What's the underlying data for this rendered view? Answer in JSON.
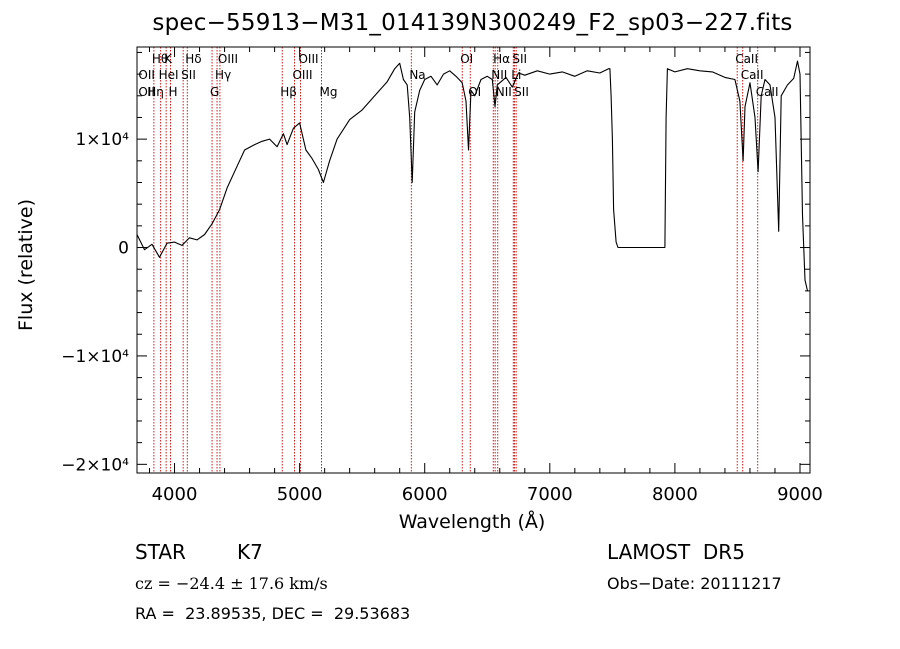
{
  "title": "spec−55913−M31_014139N300249_F2_sp03−227.fits",
  "chart_data": {
    "type": "line",
    "xlabel": "Wavelength (Å)",
    "ylabel": "Flux (relative)",
    "xlim": [
      3700,
      9080
    ],
    "ylim": [
      -20800,
      18500
    ],
    "x_ticks": [
      {
        "value": 4000,
        "label": "4000"
      },
      {
        "value": 5000,
        "label": "5000"
      },
      {
        "value": 6000,
        "label": "6000"
      },
      {
        "value": 7000,
        "label": "7000"
      },
      {
        "value": 8000,
        "label": "8000"
      },
      {
        "value": 9000,
        "label": "9000"
      }
    ],
    "y_ticks": [
      {
        "value": 10000,
        "label": "1×10⁴"
      },
      {
        "value": 0,
        "label": "0"
      },
      {
        "value": -10000,
        "label": "−1×10⁴"
      },
      {
        "value": -20000,
        "label": "−2×10⁴"
      }
    ],
    "series": [
      {
        "color": "#000000",
        "points": [
          [
            3700,
            1200
          ],
          [
            3760,
            -200
          ],
          [
            3820,
            300
          ],
          [
            3880,
            -900
          ],
          [
            3940,
            400
          ],
          [
            4000,
            500
          ],
          [
            4060,
            200
          ],
          [
            4120,
            900
          ],
          [
            4180,
            700
          ],
          [
            4240,
            1200
          ],
          [
            4300,
            2200
          ],
          [
            4360,
            3500
          ],
          [
            4420,
            5500
          ],
          [
            4500,
            7500
          ],
          [
            4560,
            9000
          ],
          [
            4640,
            9500
          ],
          [
            4700,
            9800
          ],
          [
            4760,
            10000
          ],
          [
            4820,
            9300
          ],
          [
            4870,
            10500
          ],
          [
            4900,
            9500
          ],
          [
            4950,
            11000
          ],
          [
            5000,
            11500
          ],
          [
            5050,
            9000
          ],
          [
            5100,
            8200
          ],
          [
            5150,
            7200
          ],
          [
            5190,
            6000
          ],
          [
            5240,
            8000
          ],
          [
            5300,
            10000
          ],
          [
            5400,
            11800
          ],
          [
            5500,
            12700
          ],
          [
            5600,
            14000
          ],
          [
            5700,
            15300
          ],
          [
            5760,
            16500
          ],
          [
            5800,
            17000
          ],
          [
            5830,
            15500
          ],
          [
            5860,
            15000
          ],
          [
            5880,
            12000
          ],
          [
            5900,
            6000
          ],
          [
            5920,
            12500
          ],
          [
            5960,
            14500
          ],
          [
            6000,
            15500
          ],
          [
            6050,
            15800
          ],
          [
            6100,
            15000
          ],
          [
            6150,
            16000
          ],
          [
            6200,
            16300
          ],
          [
            6250,
            15800
          ],
          [
            6300,
            15200
          ],
          [
            6330,
            13500
          ],
          [
            6350,
            9000
          ],
          [
            6370,
            14500
          ],
          [
            6400,
            14000
          ],
          [
            6450,
            15500
          ],
          [
            6500,
            15800
          ],
          [
            6540,
            15500
          ],
          [
            6562,
            13000
          ],
          [
            6580,
            15000
          ],
          [
            6650,
            15700
          ],
          [
            6700,
            14800
          ],
          [
            6750,
            16100
          ],
          [
            6800,
            15900
          ],
          [
            6900,
            16300
          ],
          [
            7000,
            16000
          ],
          [
            7100,
            16200
          ],
          [
            7200,
            15800
          ],
          [
            7300,
            16300
          ],
          [
            7400,
            16100
          ],
          [
            7470,
            16500
          ],
          [
            7480,
            16500
          ],
          [
            7490,
            14000
          ],
          [
            7500,
            10000
          ],
          [
            7510,
            3500
          ],
          [
            7530,
            500
          ],
          [
            7545,
            0
          ],
          [
            7920,
            0
          ],
          [
            7930,
            12000
          ],
          [
            7940,
            16500
          ],
          [
            8000,
            16200
          ],
          [
            8100,
            16500
          ],
          [
            8200,
            16300
          ],
          [
            8300,
            16200
          ],
          [
            8400,
            15700
          ],
          [
            8480,
            15500
          ],
          [
            8520,
            13500
          ],
          [
            8545,
            8000
          ],
          [
            8560,
            13000
          ],
          [
            8600,
            15200
          ],
          [
            8640,
            12000
          ],
          [
            8665,
            7000
          ],
          [
            8690,
            14000
          ],
          [
            8720,
            15500
          ],
          [
            8760,
            15000
          ],
          [
            8800,
            12000
          ],
          [
            8830,
            1500
          ],
          [
            8850,
            14000
          ],
          [
            8900,
            15000
          ],
          [
            8950,
            15600
          ],
          [
            8980,
            17200
          ],
          [
            9000,
            16000
          ],
          [
            9020,
            3000
          ],
          [
            9040,
            -3000
          ],
          [
            9060,
            -4000
          ]
        ]
      }
    ],
    "line_markers": [
      {
        "x": 3835,
        "label": "Hθ",
        "row": 1
      },
      {
        "x": 3889,
        "label": "HeI",
        "row": 2
      },
      {
        "x": 3933,
        "label": "K",
        "row": 1
      },
      {
        "x": 3968,
        "label": "H",
        "row": 3
      },
      {
        "x": 4102,
        "label": "Hδ",
        "row": 1
      },
      {
        "x": 4069,
        "label": "SII",
        "row": 2
      },
      {
        "x": 4300,
        "label": "G",
        "row": 3
      },
      {
        "x": 4340,
        "label": "Hγ",
        "row": 2
      },
      {
        "x": 4363,
        "label": "OIII",
        "row": 1
      },
      {
        "x": 4861,
        "label": "Hβ",
        "row": 3
      },
      {
        "x": 4959,
        "label": "OIII",
        "row": 2
      },
      {
        "x": 5007,
        "label": "OIII",
        "row": 1
      },
      {
        "x": 5175,
        "label": "Mg",
        "row": 3
      },
      {
        "x": 5893,
        "label": "Na",
        "row": 2
      },
      {
        "x": 6300,
        "label": "OI",
        "row": 1
      },
      {
        "x": 6364,
        "label": "OI",
        "row": 3
      },
      {
        "x": 6548,
        "label": "NII",
        "row": 2
      },
      {
        "x": 6563,
        "label": "Hα",
        "row": 1
      },
      {
        "x": 6584,
        "label": "NII",
        "row": 3
      },
      {
        "x": 6708,
        "label": "Li",
        "row": 2
      },
      {
        "x": 6717,
        "label": "SII",
        "row": 1
      },
      {
        "x": 6731,
        "label": "SII",
        "row": 3
      },
      {
        "x": 8498,
        "label": "CaII",
        "row": 1
      },
      {
        "x": 8542,
        "label": "CaII",
        "row": 2
      },
      {
        "x": 8662,
        "label": "CaII",
        "row": 3
      }
    ],
    "extra_labels": [
      {
        "x": 3727,
        "label": "OII",
        "row": 2
      },
      {
        "x": 3727,
        "label": "OII",
        "row": 3
      },
      {
        "x": 3798,
        "label": "Hη",
        "row": 3
      }
    ]
  },
  "info": {
    "class": "STAR",
    "subclass": "K7",
    "cz": "cz = −24.4 ± 17.6 km/s",
    "ra_dec": "RA =  23.89535, DEC =  29.53683",
    "survey": "LAMOST  DR5",
    "obs_date": "Obs−Date: 20111217"
  }
}
